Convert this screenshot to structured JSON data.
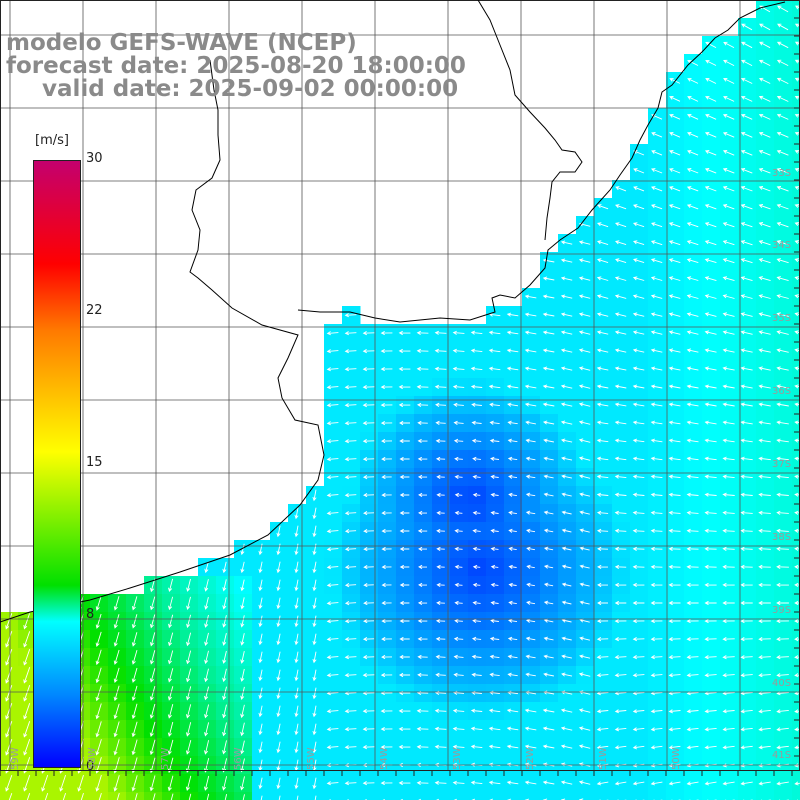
{
  "header": {
    "line1": "modelo GEFS-WAVE (NCEP)",
    "line2": "forecast date: 2025-08-20 18:00:00",
    "line3": "valid date: 2025-09-02 00:00:00"
  },
  "colorbar": {
    "unit": "[m/s]",
    "ticks": [
      "30",
      "22",
      "15",
      "8",
      "0"
    ],
    "tick_values": [
      30,
      22,
      15,
      8,
      0
    ],
    "min": 0,
    "max": 30
  },
  "grid": {
    "lat_labels": [
      "33S",
      "34S",
      "35S",
      "36S",
      "37S",
      "38S",
      "39S",
      "40S",
      "41S"
    ],
    "lon_labels": [
      "59W",
      "58W",
      "57W",
      "56W",
      "55W",
      "54W",
      "53W",
      "52W",
      "51W",
      "50W"
    ]
  },
  "colors": {
    "land": "#ffffff",
    "arrow": "#ffffff",
    "grid_line": "#555555",
    "coast": "#000000"
  }
}
